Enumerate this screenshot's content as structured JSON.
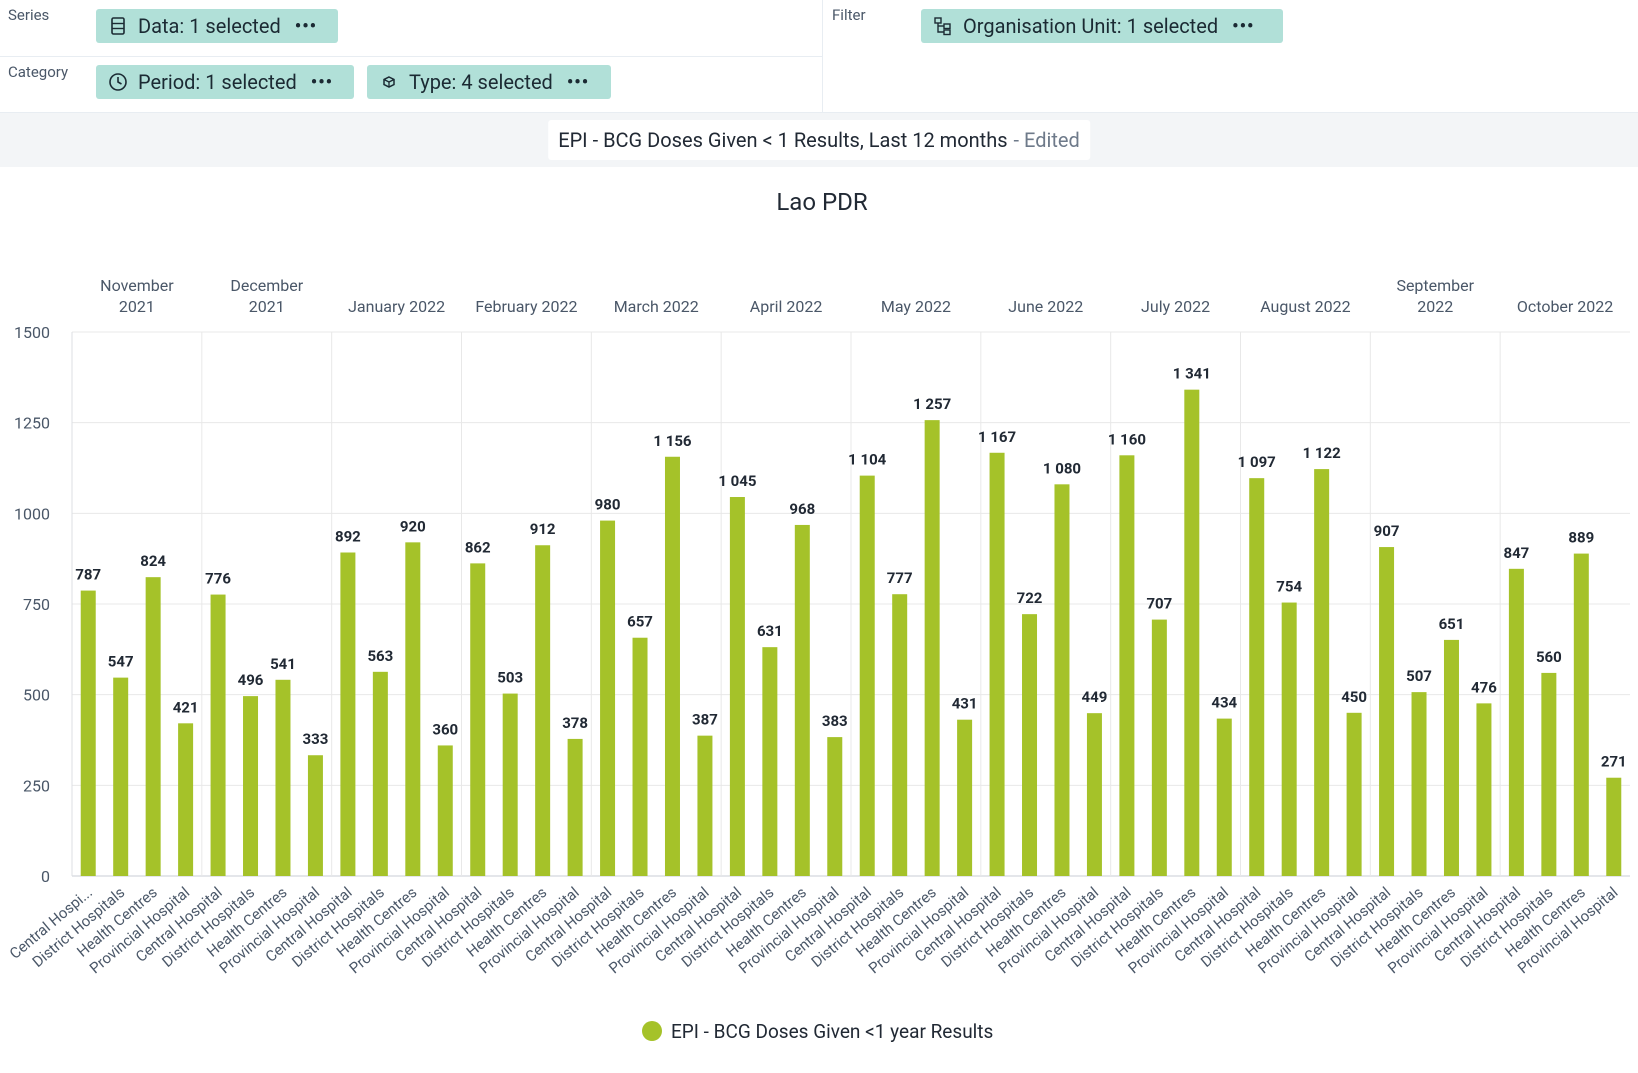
{
  "layout": {
    "series_label": "Series",
    "category_label": "Category",
    "filter_label": "Filter",
    "chips": {
      "data": "Data: 1 selected",
      "period": "Period: 1 selected",
      "type": "Type: 4 selected",
      "org_unit": "Organisation Unit: 1 selected"
    },
    "more_glyph": "•••"
  },
  "title_bar": {
    "title": "EPI - BCG Doses Given < 1 Results, Last 12 months",
    "status": "- Edited"
  },
  "colors": {
    "bar": "#a5c229",
    "chip": "#b1e0d8",
    "grid": "#e8e8e8"
  },
  "chart_data": {
    "type": "bar",
    "title": "Lao PDR",
    "legend_position": "bottom-center",
    "grid": true,
    "ylim": [
      0,
      1500
    ],
    "yticks": [
      "0",
      "250",
      "500",
      "750",
      "1000",
      "1250",
      "1500"
    ],
    "groups": [
      {
        "label": [
          "November",
          "2021"
        ],
        "categories": [
          "Central Hospi...",
          "District Hospitals",
          "Health Centres",
          "Provincial Hospital"
        ],
        "values": [
          787,
          547,
          824,
          421
        ],
        "labels": [
          "787",
          "547",
          "824",
          "421"
        ]
      },
      {
        "label": [
          "December",
          "2021"
        ],
        "categories": [
          "Central Hospital",
          "District Hospitals",
          "Health Centres",
          "Provincial Hospital"
        ],
        "values": [
          776,
          496,
          541,
          333
        ],
        "labels": [
          "776",
          "496",
          "541",
          "333"
        ]
      },
      {
        "label": [
          "January 2022"
        ],
        "categories": [
          "Central Hospital",
          "District Hospitals",
          "Health Centres",
          "Provincial Hospital"
        ],
        "values": [
          892,
          563,
          920,
          360
        ],
        "labels": [
          "892",
          "563",
          "920",
          "360"
        ]
      },
      {
        "label": [
          "February 2022"
        ],
        "categories": [
          "Central Hospital",
          "District Hospitals",
          "Health Centres",
          "Provincial Hospital"
        ],
        "values": [
          862,
          503,
          912,
          378
        ],
        "labels": [
          "862",
          "503",
          "912",
          "378"
        ]
      },
      {
        "label": [
          "March 2022"
        ],
        "categories": [
          "Central Hospital",
          "District Hospitals",
          "Health Centres",
          "Provincial Hospital"
        ],
        "values": [
          980,
          657,
          1156,
          387
        ],
        "labels": [
          "980",
          "657",
          "1 156",
          "387"
        ]
      },
      {
        "label": [
          "April 2022"
        ],
        "categories": [
          "Central Hospital",
          "District Hospitals",
          "Health Centres",
          "Provincial Hospital"
        ],
        "values": [
          1045,
          631,
          968,
          383
        ],
        "labels": [
          "1 045",
          "631",
          "968",
          "383"
        ]
      },
      {
        "label": [
          "May 2022"
        ],
        "categories": [
          "Central Hospital",
          "District Hospitals",
          "Health Centres",
          "Provincial Hospital"
        ],
        "values": [
          1104,
          777,
          1257,
          431
        ],
        "labels": [
          "1 104",
          "777",
          "1 257",
          "431"
        ]
      },
      {
        "label": [
          "June 2022"
        ],
        "categories": [
          "Central Hospital",
          "District Hospitals",
          "Health Centres",
          "Provincial Hospital"
        ],
        "values": [
          1167,
          722,
          1080,
          449
        ],
        "labels": [
          "1 167",
          "722",
          "1 080",
          "449"
        ]
      },
      {
        "label": [
          "July 2022"
        ],
        "categories": [
          "Central Hospital",
          "District Hospitals",
          "Health Centres",
          "Provincial Hospital"
        ],
        "values": [
          1160,
          707,
          1341,
          434
        ],
        "labels": [
          "1 160",
          "707",
          "1 341",
          "434"
        ]
      },
      {
        "label": [
          "August 2022"
        ],
        "categories": [
          "Central Hospital",
          "District Hospitals",
          "Health Centres",
          "Provincial Hospital"
        ],
        "values": [
          1097,
          754,
          1122,
          450
        ],
        "labels": [
          "1 097",
          "754",
          "1 122",
          "450"
        ]
      },
      {
        "label": [
          "September",
          "2022"
        ],
        "categories": [
          "Central Hospital",
          "District Hospitals",
          "Health Centres",
          "Provincial Hospital"
        ],
        "values": [
          907,
          507,
          651,
          476
        ],
        "labels": [
          "907",
          "507",
          "651",
          "476"
        ]
      },
      {
        "label": [
          "October 2022"
        ],
        "categories": [
          "Central Hospital",
          "District Hospitals",
          "Health Centres",
          "Provincial Hospital"
        ],
        "values": [
          847,
          560,
          889,
          271
        ],
        "labels": [
          "847",
          "560",
          "889",
          "271"
        ]
      }
    ],
    "series": [
      {
        "name": "EPI - BCG Doses Given <1 year Results"
      }
    ]
  }
}
